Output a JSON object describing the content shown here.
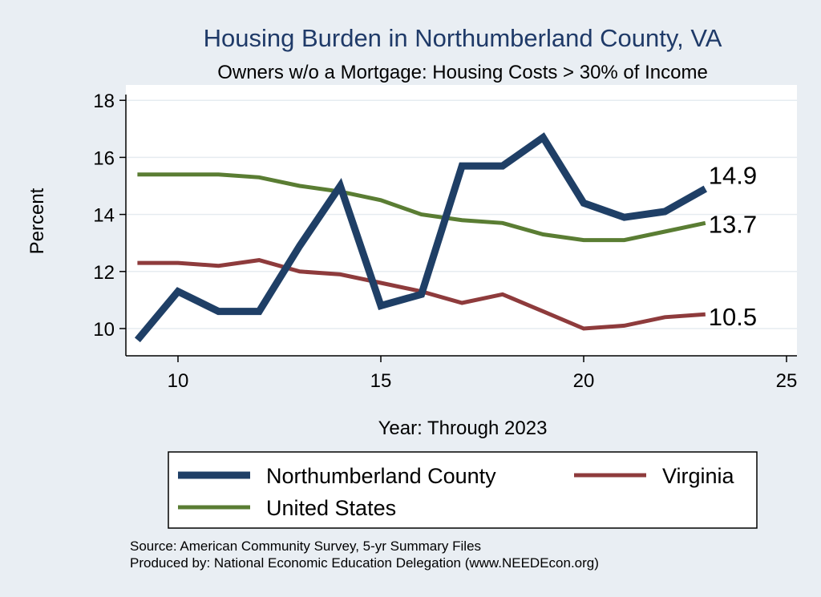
{
  "chart_data": {
    "type": "line",
    "title": "Housing Burden in Northumberland County, VA",
    "subtitle": "Owners w/o a Mortgage: Housing Costs > 30% of Income",
    "xlabel": "Year: Through 2023",
    "ylabel": "Percent",
    "xlim": [
      8.7,
      25
    ],
    "ylim": [
      9.1,
      18.3
    ],
    "xticks": [
      10,
      15,
      20,
      25
    ],
    "yticks": [
      10,
      12,
      14,
      16,
      18
    ],
    "grid": "horizontal",
    "x": [
      9,
      10,
      11,
      12,
      13,
      14,
      15,
      16,
      17,
      18,
      19,
      20,
      21,
      22,
      23
    ],
    "series": [
      {
        "name": "Northumberland County",
        "color": "#1f3f66",
        "values": [
          9.6,
          11.3,
          10.6,
          10.6,
          12.9,
          15.0,
          10.8,
          11.2,
          15.7,
          15.7,
          16.7,
          14.4,
          13.9,
          14.1,
          14.9
        ],
        "end_label": "14.9"
      },
      {
        "name": "Virginia",
        "color": "#8e3b3c",
        "values": [
          12.3,
          12.3,
          12.2,
          12.4,
          12.0,
          11.9,
          11.6,
          11.3,
          10.9,
          11.2,
          10.6,
          10.0,
          10.1,
          10.4,
          10.5
        ],
        "end_label": "10.5"
      },
      {
        "name": "United States",
        "color": "#5a7d33",
        "values": [
          15.4,
          15.4,
          15.4,
          15.3,
          15.0,
          14.8,
          14.5,
          14.0,
          13.8,
          13.7,
          13.3,
          13.1,
          13.1,
          13.4,
          13.7
        ],
        "end_label": "13.7"
      }
    ],
    "legend": {
      "position": "bottom",
      "entries": [
        "Northumberland County",
        "Virginia",
        "United States"
      ]
    },
    "notes": [
      "Source: American Community Survey, 5-yr Summary Files",
      "Produced by: National Economic Education Delegation (www.NEEDEcon.org)"
    ]
  },
  "colors": {
    "background": "#e9eef3",
    "plot_background": "#ffffff",
    "title": "#1f3a68",
    "grid": "#e6ecf0"
  }
}
